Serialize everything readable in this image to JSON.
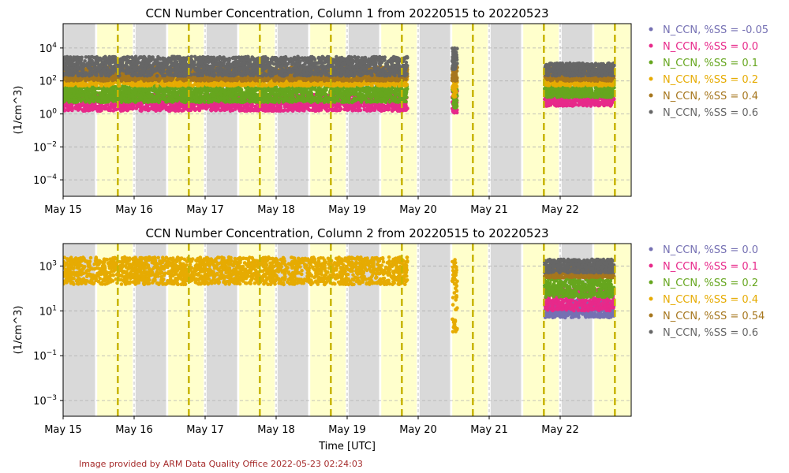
{
  "credit": "Image provided by ARM Data Quality Office 2022-05-23 02:24:03",
  "chart_data": [
    {
      "type": "scatter",
      "title": "CCN Number Concentration, Column 1 from 20220515 to 20220523",
      "xlabel": "",
      "ylabel": "(1/cm^3)",
      "x_tick_labels": [
        "May 15",
        "May 16",
        "May 17",
        "May 18",
        "May 19",
        "May 20",
        "May 21",
        "May 22"
      ],
      "x_range_days": [
        0,
        8
      ],
      "y_scale": "log",
      "ylim": [
        1e-05,
        300000
      ],
      "y_ticks": [
        {
          "exp": -4,
          "mant": "10",
          "sup": "−4"
        },
        {
          "exp": -2,
          "mant": "10",
          "sup": "−2"
        },
        {
          "exp": 0,
          "mant": "10",
          "sup": "0"
        },
        {
          "exp": 2,
          "mant": "10",
          "sup": "2"
        },
        {
          "exp": 4,
          "mant": "10",
          "sup": "4"
        }
      ],
      "grid": true,
      "legend_position": "right",
      "night_spans_days": [
        [
          0.0,
          0.45
        ],
        [
          1.02,
          1.45
        ],
        [
          2.02,
          2.45
        ],
        [
          3.02,
          3.45
        ],
        [
          4.02,
          4.45
        ],
        [
          5.02,
          5.45
        ],
        [
          6.02,
          6.45
        ],
        [
          7.02,
          7.45
        ]
      ],
      "day_spans_days": [
        [
          0.48,
          0.98
        ],
        [
          1.48,
          1.98
        ],
        [
          2.48,
          2.98
        ],
        [
          3.48,
          3.98
        ],
        [
          4.48,
          4.98
        ],
        [
          5.48,
          5.98
        ],
        [
          6.48,
          6.98
        ],
        [
          7.48,
          8.0
        ]
      ],
      "marker_lines_days": [
        0.77,
        1.77,
        2.77,
        3.77,
        4.77,
        5.77,
        6.77,
        7.77
      ],
      "series": [
        {
          "name": "N_CCN, %SS = -0.05",
          "color": "#7570b3",
          "segments": []
        },
        {
          "name": "N_CCN, %SS = 0.0",
          "color": "#e7298a",
          "segments": [
            [
              0.0,
              4.85,
              1.5,
              15
            ],
            [
              5.48,
              5.55,
              1.0,
              30
            ],
            [
              6.78,
              7.76,
              3,
              20
            ]
          ]
        },
        {
          "name": "N_CCN, %SS = 0.1",
          "color": "#66a61e",
          "segments": [
            [
              0.0,
              4.85,
              5,
              50
            ],
            [
              5.48,
              5.55,
              2,
              40
            ],
            [
              6.78,
              7.76,
              10,
              50
            ]
          ]
        },
        {
          "name": "N_CCN, %SS = 0.2",
          "color": "#e6ab02",
          "segments": [
            [
              0.0,
              4.85,
              50,
              300
            ],
            [
              5.48,
              5.55,
              10,
              300
            ],
            [
              6.78,
              7.76,
              50,
              300
            ]
          ]
        },
        {
          "name": "N_CCN, %SS = 0.4",
          "color": "#a6761d",
          "segments": [
            [
              0.0,
              4.85,
              100,
              700
            ],
            [
              5.48,
              5.55,
              100,
              1000
            ],
            [
              6.78,
              7.76,
              100,
              600
            ]
          ]
        },
        {
          "name": "N_CCN, %SS = 0.6",
          "color": "#666666",
          "segments": [
            [
              0.0,
              4.85,
              200,
              3000
            ],
            [
              5.48,
              5.55,
              500,
              10000
            ],
            [
              6.78,
              7.76,
              200,
              1200
            ]
          ]
        }
      ]
    },
    {
      "type": "scatter",
      "title": "CCN Number Concentration, Column 2 from 20220515 to 20220523",
      "xlabel": "Time [UTC]",
      "ylabel": "(1/cm^3)",
      "x_tick_labels": [
        "May 15",
        "May 16",
        "May 17",
        "May 18",
        "May 19",
        "May 20",
        "May 21",
        "May 22"
      ],
      "x_range_days": [
        0,
        8
      ],
      "y_scale": "log",
      "ylim": [
        0.0002,
        10000
      ],
      "y_ticks": [
        {
          "exp": -3,
          "mant": "10",
          "sup": "−3"
        },
        {
          "exp": -1,
          "mant": "10",
          "sup": "−1"
        },
        {
          "exp": 1,
          "mant": "10",
          "sup": "1"
        },
        {
          "exp": 3,
          "mant": "10",
          "sup": "3"
        }
      ],
      "grid": true,
      "legend_position": "right",
      "night_spans_days": [
        [
          0.0,
          0.45
        ],
        [
          1.02,
          1.45
        ],
        [
          2.02,
          2.45
        ],
        [
          3.02,
          3.45
        ],
        [
          4.02,
          4.45
        ],
        [
          5.02,
          5.45
        ],
        [
          6.02,
          6.45
        ],
        [
          7.02,
          7.45
        ]
      ],
      "day_spans_days": [
        [
          0.48,
          0.98
        ],
        [
          1.48,
          1.98
        ],
        [
          2.48,
          2.98
        ],
        [
          3.48,
          3.98
        ],
        [
          4.48,
          4.98
        ],
        [
          5.48,
          5.98
        ],
        [
          6.48,
          6.98
        ],
        [
          7.48,
          8.0
        ]
      ],
      "marker_lines_days": [
        0.77,
        1.77,
        2.77,
        3.77,
        4.77,
        5.77,
        6.77,
        7.77
      ],
      "series": [
        {
          "name": "N_CCN, %SS = 0.0",
          "color": "#7570b3",
          "segments": [
            [
              6.78,
              7.76,
              5,
              30
            ]
          ]
        },
        {
          "name": "N_CCN, %SS = 0.1",
          "color": "#e7298a",
          "segments": [
            [
              6.78,
              7.76,
              10,
              100
            ]
          ]
        },
        {
          "name": "N_CCN, %SS = 0.2",
          "color": "#66a61e",
          "segments": [
            [
              6.78,
              7.76,
              40,
              300
            ]
          ]
        },
        {
          "name": "N_CCN, %SS = 0.4",
          "color": "#e6ab02",
          "segments": [
            [
              0.0,
              4.85,
              150,
              2500
            ],
            [
              5.48,
              5.55,
              1,
              2000
            ]
          ]
        },
        {
          "name": "N_CCN, %SS = 0.54",
          "color": "#a6761d",
          "segments": [
            [
              6.78,
              7.76,
              300,
              1000
            ]
          ]
        },
        {
          "name": "N_CCN, %SS = 0.6",
          "color": "#666666",
          "segments": [
            [
              6.78,
              7.76,
              500,
              2000
            ]
          ]
        }
      ]
    }
  ]
}
